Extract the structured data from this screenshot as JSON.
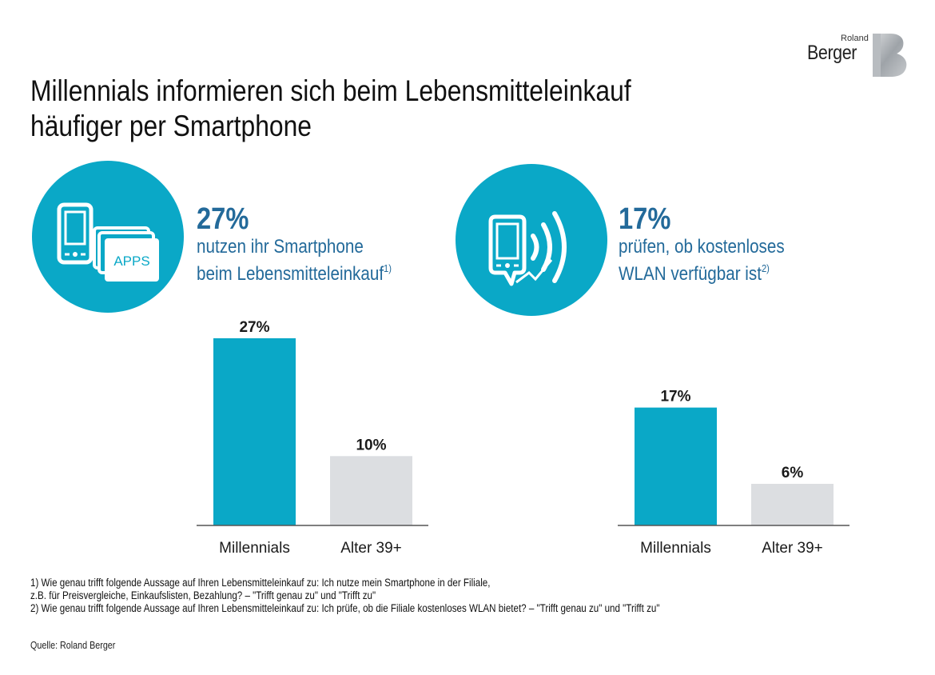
{
  "brand": {
    "line1": "Roland",
    "line2": "Berger"
  },
  "title": {
    "line1": "Millennials informieren sich beim Lebensmitteleinkauf",
    "line2": "häufiger per Smartphone"
  },
  "colors": {
    "accent": "#0aa8c7",
    "secondary_bar": "#dcdee1",
    "stat_text": "#236a9a",
    "axis": "#555555"
  },
  "panels": [
    {
      "icon": "smartphone-apps-icon",
      "icon_label": "APPS",
      "stat": "27%",
      "desc_line1": "nutzen ihr Smartphone",
      "desc_line2": "beim Lebensmitteleinkauf",
      "footnote_ref": "1)"
    },
    {
      "icon": "smartphone-wifi-icon",
      "stat": "17%",
      "desc_line1": "prüfen, ob kostenloses",
      "desc_line2": "WLAN verfügbar ist",
      "footnote_ref": "2)"
    }
  ],
  "chart_data": [
    {
      "type": "bar",
      "title": "",
      "xlabel": "",
      "ylabel": "",
      "categories": [
        "Millennials",
        "Alter 39+"
      ],
      "values": [
        27,
        10
      ],
      "value_labels": [
        "27%",
        "10%"
      ],
      "unit": "%",
      "ylim": [
        0,
        30
      ],
      "grid": false
    },
    {
      "type": "bar",
      "title": "",
      "xlabel": "",
      "ylabel": "",
      "categories": [
        "Millennials",
        "Alter 39+"
      ],
      "values": [
        17,
        6
      ],
      "value_labels": [
        "17%",
        "6%"
      ],
      "unit": "%",
      "ylim": [
        0,
        30
      ],
      "grid": false
    }
  ],
  "footnotes": [
    "1) Wie genau trifft folgende Aussage auf Ihren Lebensmitteleinkauf zu: Ich nutze mein Smartphone in der Filiale,",
    "z.B. für Preisvergleiche, Einkaufslisten, Bezahlung? – \"Trifft genau zu\" und \"Trifft zu\"",
    "2) Wie genau trifft folgende Aussage auf Ihren Lebensmitteleinkauf zu: Ich prüfe, ob die Filiale kostenloses WLAN bietet? – \"Trifft genau zu\" und \"Trifft zu\""
  ],
  "source": "Quelle: Roland Berger"
}
